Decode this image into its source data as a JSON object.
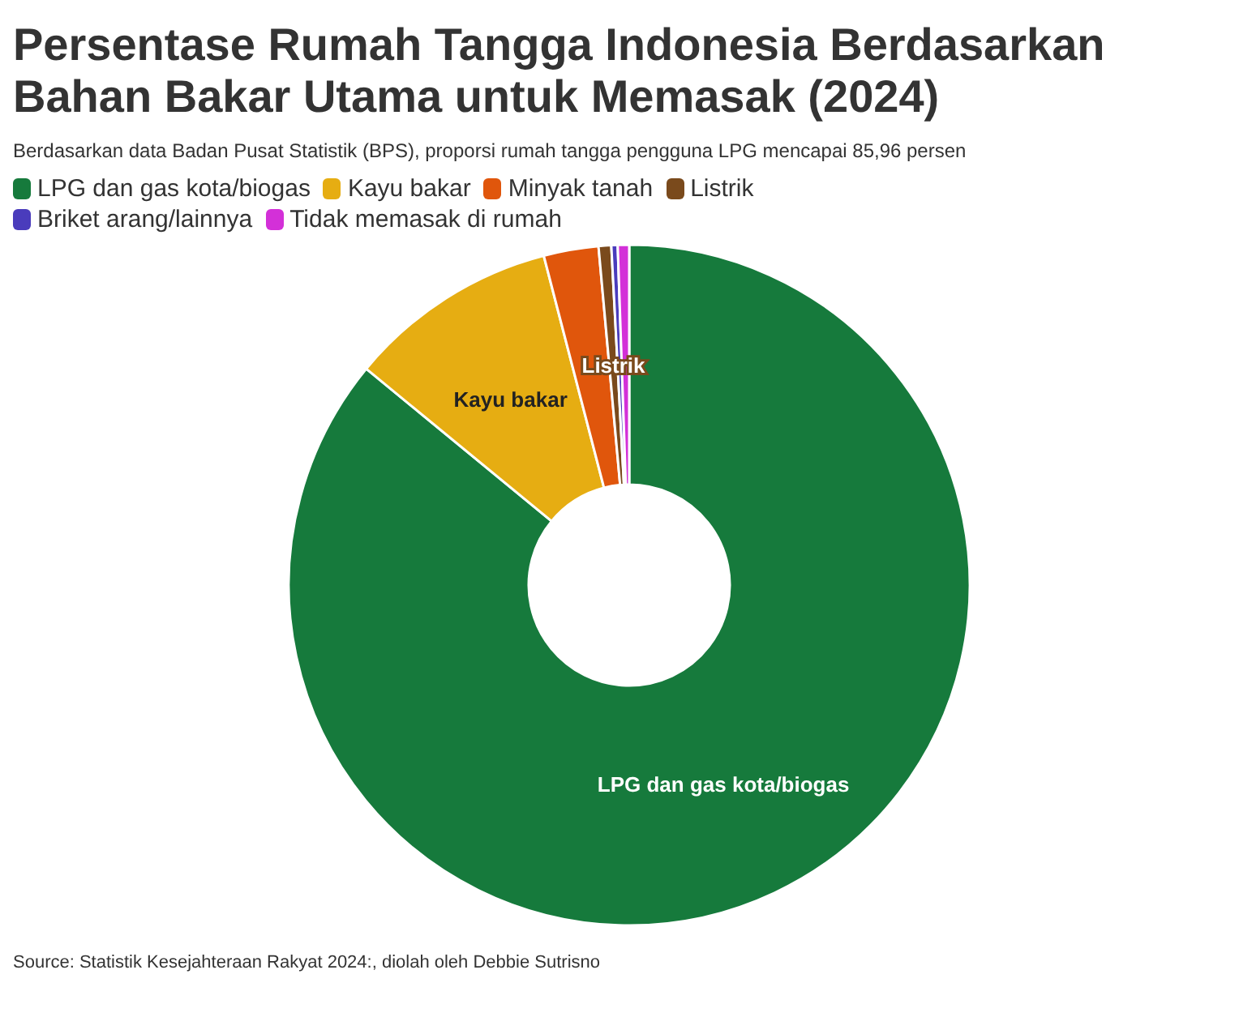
{
  "chart_data": {
    "type": "donut",
    "title": "Persentase Rumah Tangga Indonesia Berdasarkan Bahan Bakar Utama untuk Memasak (2024)",
    "subtitle": "Berdasarkan data Badan Pusat Statistik (BPS), proporsi rumah tangga pengguna LPG mencapai 85,96 persen",
    "categories": [
      "LPG dan gas kota/biogas",
      "Kayu bakar",
      "Minyak tanah",
      "Listrik",
      "Briket arang/lainnya",
      "Tidak memasak di rumah"
    ],
    "values": [
      85.96,
      10.0,
      2.6,
      0.6,
      0.3,
      0.54
    ],
    "colors": [
      "#167a3c",
      "#e6ad12",
      "#e0560c",
      "#7a4a1c",
      "#4a3cbc",
      "#d330d8"
    ],
    "legend": "top left",
    "annotations": [
      {
        "text": "LPG dan gas kota/biogas",
        "x": "LPG dan gas kota/biogas"
      },
      {
        "text": "Kayu bakar",
        "x": "Kayu bakar"
      },
      {
        "text": "Listrik",
        "x": "Listrik"
      },
      "Source: Statistik Kesejahteraan Rakyat 2024:, diolah oleh Debbie Sutrisno"
    ]
  }
}
